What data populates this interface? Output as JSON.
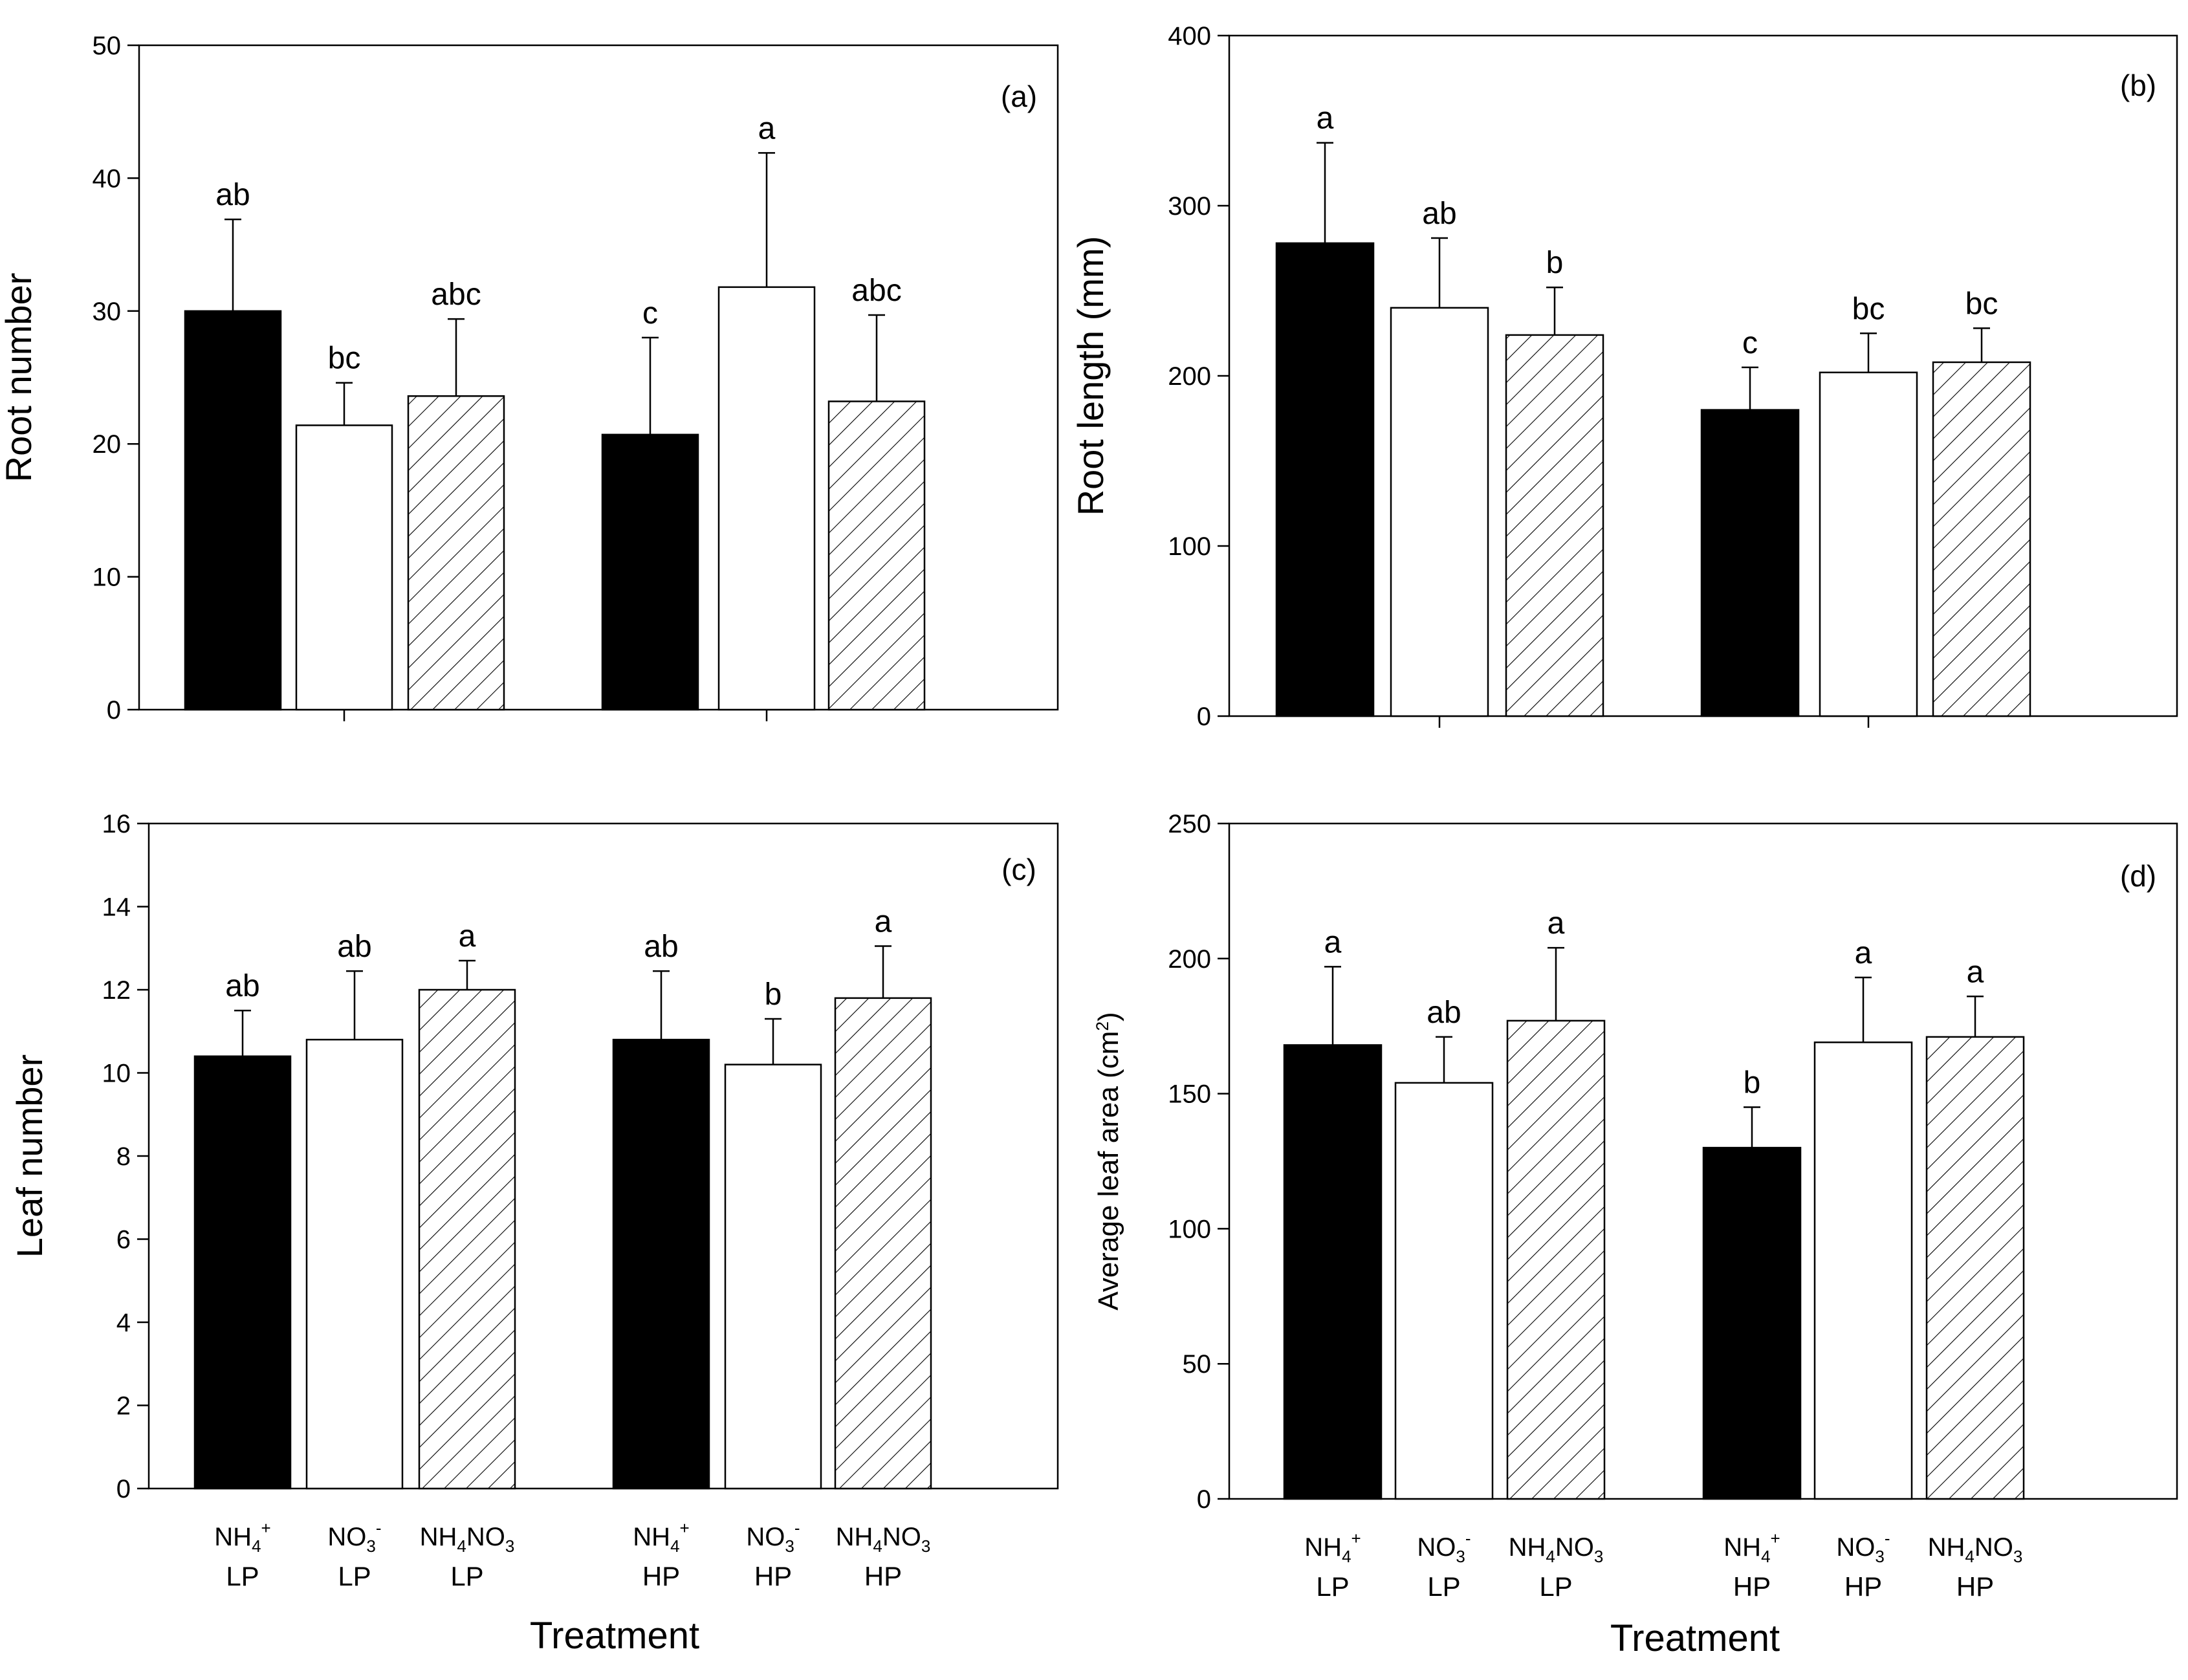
{
  "x_categories": [
    {
      "top_base": "NH",
      "top_sub": "4",
      "top_sup": "+",
      "top_tail": "",
      "bottom": "LP"
    },
    {
      "top_base": "NO",
      "top_sub": "3",
      "top_sup": "-",
      "top_tail": "",
      "bottom": "LP"
    },
    {
      "top_base": "NH",
      "top_sub": "4",
      "top_sup": "",
      "top_tail": "NO3",
      "bottom": "LP"
    },
    {
      "top_base": "NH",
      "top_sub": "4",
      "top_sup": "+",
      "top_tail": "",
      "bottom": "HP"
    },
    {
      "top_base": "NO",
      "top_sub": "3",
      "top_sup": "-",
      "top_tail": "",
      "bottom": "HP"
    },
    {
      "top_base": "NH",
      "top_sub": "4",
      "top_sup": "",
      "top_tail": "NO3",
      "bottom": "HP"
    }
  ],
  "xlabel": "Treatment",
  "colors": {
    "ammonium": "#000000",
    "nitrate": "#ffffff",
    "mixed": "hatched"
  },
  "chart_data": [
    {
      "panel": "(a)",
      "type": "bar",
      "ylabel": "Root number",
      "ylim": [
        0,
        50
      ],
      "yticks": [
        0,
        10,
        20,
        30,
        40,
        50
      ],
      "values": [
        30,
        21.4,
        23.6,
        20.7,
        31.8,
        23.2
      ],
      "errors": [
        6.9,
        3.2,
        5.8,
        7.3,
        10.1,
        6.5
      ],
      "letters": [
        "ab",
        "bc",
        "abc",
        "c",
        "a",
        "abc"
      ]
    },
    {
      "panel": "(b)",
      "type": "bar",
      "ylabel": "Root length (mm)",
      "ylim": [
        0,
        400
      ],
      "yticks": [
        0,
        100,
        200,
        300,
        400
      ],
      "values": [
        278,
        240,
        224,
        180,
        202,
        208
      ],
      "errors": [
        59,
        41,
        28,
        25,
        23,
        20
      ],
      "letters": [
        "a",
        "ab",
        "b",
        "c",
        "bc",
        "bc"
      ]
    },
    {
      "panel": "(c)",
      "type": "bar",
      "ylabel": "Leaf number",
      "ylim": [
        0,
        16
      ],
      "yticks": [
        0,
        2,
        4,
        6,
        8,
        10,
        12,
        14,
        16
      ],
      "values": [
        10.4,
        10.8,
        12.0,
        10.8,
        10.2,
        11.8
      ],
      "errors": [
        1.1,
        1.65,
        0.7,
        1.65,
        1.1,
        1.25
      ],
      "letters": [
        "ab",
        "ab",
        "a",
        "ab",
        "b",
        "a"
      ]
    },
    {
      "panel": "(d)",
      "type": "bar",
      "ylabel": "Average leaf area (cm2)",
      "ylim": [
        0,
        250
      ],
      "yticks": [
        0,
        50,
        100,
        150,
        200,
        250
      ],
      "values": [
        168,
        154,
        177,
        130,
        169,
        171
      ],
      "errors": [
        29,
        17,
        27,
        15,
        24,
        15
      ],
      "letters": [
        "a",
        "ab",
        "a",
        "b",
        "a",
        "a"
      ]
    }
  ]
}
